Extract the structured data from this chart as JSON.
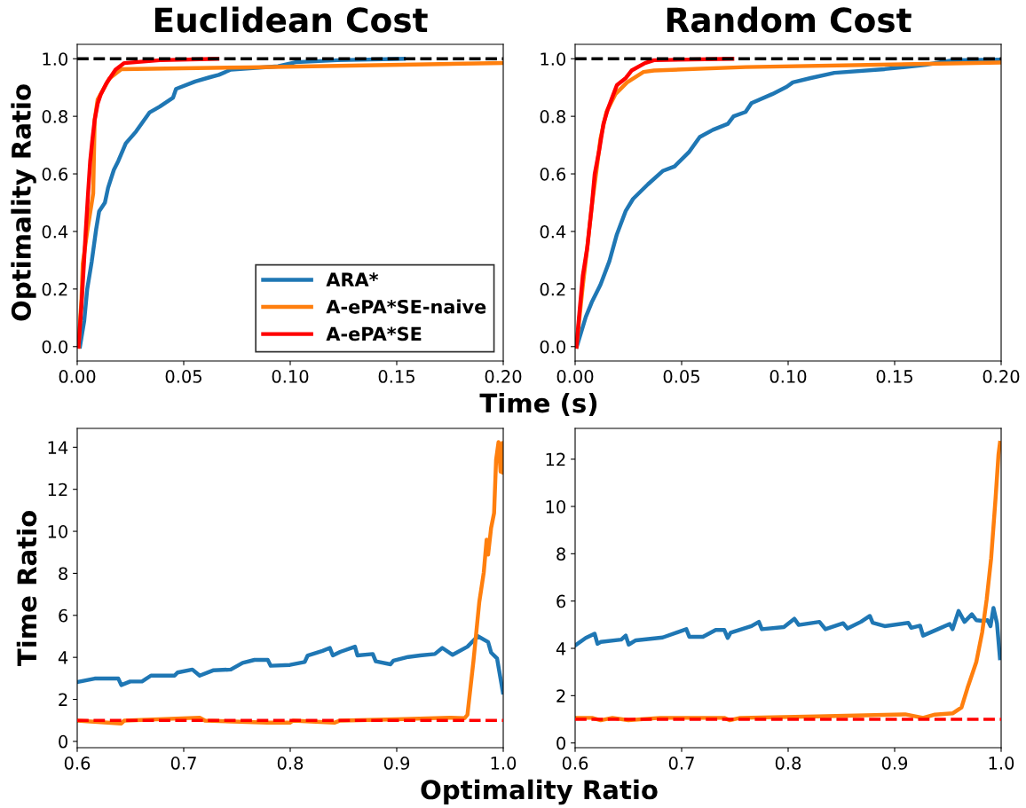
{
  "chart_data": [
    {
      "type": "line",
      "title": "Euclidean Cost",
      "ylabel": "Optimality Ratio",
      "xlabel": "Time (s)",
      "xlim": [
        0,
        0.2
      ],
      "xticks": [
        {
          "value": 0,
          "label": "0.00"
        },
        {
          "value": 0.05,
          "label": "0.05"
        },
        {
          "value": 0.1,
          "label": "0.10"
        },
        {
          "value": 0.15,
          "label": "0.15"
        },
        {
          "value": 0.2,
          "label": "0.20"
        }
      ],
      "ylim": [
        -0.05,
        1.05
      ],
      "yticks": [
        {
          "value": 0,
          "label": "0.0"
        },
        {
          "value": 0.2,
          "label": "0.2"
        },
        {
          "value": 0.4,
          "label": "0.4"
        },
        {
          "value": 0.6,
          "label": "0.6"
        },
        {
          "value": 0.8,
          "label": "0.8"
        },
        {
          "value": 1,
          "label": "1.0"
        }
      ],
      "legend": "bottom right",
      "grid": false,
      "ref_lines": [
        {
          "axis": "y",
          "value": 1,
          "color": "#000000",
          "line_style": "dashed"
        }
      ],
      "series": [
        {
          "name": "ARA*",
          "color": "#1f77b4",
          "x": [
            0.0013,
            0.0033,
            0.0047,
            0.0068,
            0.0089,
            0.0103,
            0.013,
            0.0145,
            0.0172,
            0.0193,
            0.0228,
            0.0276,
            0.0339,
            0.0388,
            0.045,
            0.0464,
            0.0554,
            0.0624,
            0.0665,
            0.0721,
            0.0943,
            0.1026,
            0.1221,
            0.1533
          ],
          "values": [
            0.0,
            0.09,
            0.2,
            0.295,
            0.408,
            0.47,
            0.5,
            0.552,
            0.614,
            0.645,
            0.706,
            0.747,
            0.813,
            0.834,
            0.865,
            0.895,
            0.921,
            0.936,
            0.944,
            0.962,
            0.974,
            0.988,
            0.995,
            1.0
          ]
        },
        {
          "name": "A-ePA*SE-naive",
          "color": "#ff7f0e",
          "x": [
            0.0006,
            0.002,
            0.0026,
            0.0047,
            0.0075,
            0.0082,
            0.0096,
            0.0151,
            0.0207,
            0.0804,
            0.2
          ],
          "values": [
            0.0,
            0.164,
            0.287,
            0.4,
            0.532,
            0.788,
            0.859,
            0.931,
            0.964,
            0.97,
            0.985
          ]
        },
        {
          "name": "A-ePA*SE",
          "color": "#ff0000",
          "x": [
            0.0006,
            0.002,
            0.0029,
            0.004,
            0.0051,
            0.0061,
            0.0071,
            0.0082,
            0.0096,
            0.011,
            0.0138,
            0.018,
            0.0221,
            0.0388,
            0.0658
          ],
          "values": [
            0.0,
            0.144,
            0.257,
            0.4,
            0.532,
            0.645,
            0.717,
            0.788,
            0.844,
            0.875,
            0.916,
            0.962,
            0.985,
            0.995,
            1.0
          ]
        }
      ]
    },
    {
      "type": "line",
      "title": "Random Cost",
      "xlim": [
        0,
        0.2
      ],
      "xticks": [
        {
          "value": 0,
          "label": "0.00"
        },
        {
          "value": 0.05,
          "label": "0.05"
        },
        {
          "value": 0.1,
          "label": "0.10"
        },
        {
          "value": 0.15,
          "label": "0.15"
        },
        {
          "value": 0.2,
          "label": "0.20"
        }
      ],
      "ylim": [
        -0.05,
        1.05
      ],
      "yticks": [
        {
          "value": 0,
          "label": "0.0"
        },
        {
          "value": 0.2,
          "label": "0.2"
        },
        {
          "value": 0.4,
          "label": "0.4"
        },
        {
          "value": 0.6,
          "label": "0.6"
        },
        {
          "value": 0.8,
          "label": "0.8"
        },
        {
          "value": 1,
          "label": "1.0"
        }
      ],
      "grid": false,
      "ref_lines": [
        {
          "axis": "y",
          "value": 1,
          "color": "#000000",
          "line_style": "dashed"
        }
      ],
      "series": [
        {
          "color": "#1f77b4",
          "x": [
            0.0008,
            0.005,
            0.0078,
            0.0119,
            0.0161,
            0.0196,
            0.0238,
            0.0272,
            0.0342,
            0.0411,
            0.0467,
            0.0536,
            0.0585,
            0.0647,
            0.0717,
            0.0744,
            0.08,
            0.0828,
            0.0925,
            0.0994,
            0.1022,
            0.1106,
            0.1217,
            0.1453,
            0.1647,
            0.1772,
            0.2
          ],
          "values": [
            0.0,
            0.103,
            0.154,
            0.215,
            0.297,
            0.39,
            0.472,
            0.513,
            0.564,
            0.61,
            0.626,
            0.677,
            0.728,
            0.753,
            0.774,
            0.8,
            0.815,
            0.846,
            0.877,
            0.903,
            0.918,
            0.933,
            0.951,
            0.964,
            0.979,
            0.995,
            0.997
          ]
        },
        {
          "color": "#ff7f0e",
          "x": [
            0.0006,
            0.0036,
            0.0057,
            0.0078,
            0.01,
            0.0119,
            0.0147,
            0.0189,
            0.0244,
            0.0321,
            0.037,
            0.08,
            0.2
          ],
          "values": [
            0.0,
            0.21,
            0.344,
            0.487,
            0.61,
            0.723,
            0.815,
            0.877,
            0.918,
            0.954,
            0.959,
            0.971,
            0.987
          ]
        },
        {
          "color": "#ff0000",
          "x": [
            0.0006,
            0.0022,
            0.0036,
            0.0057,
            0.0078,
            0.0092,
            0.0113,
            0.0133,
            0.0154,
            0.0175,
            0.0196,
            0.0238,
            0.0265,
            0.0328,
            0.037,
            0.0738
          ],
          "values": [
            0.0,
            0.133,
            0.246,
            0.344,
            0.487,
            0.6,
            0.682,
            0.774,
            0.826,
            0.867,
            0.908,
            0.933,
            0.959,
            0.985,
            0.995,
            1.0
          ]
        }
      ]
    },
    {
      "type": "line",
      "ylabel": "Time Ratio",
      "xlabel": "Optimality Ratio",
      "xlim": [
        0.6,
        1.0
      ],
      "xticks": [
        0.6,
        0.7,
        0.8,
        0.9,
        {
          "value": 1.0,
          "label": "1.0"
        }
      ],
      "ylim": [
        -0.3,
        14.9
      ],
      "yticks": [
        0,
        2,
        4,
        6,
        8,
        10,
        12,
        14
      ],
      "grid": false,
      "ref_lines": [
        {
          "axis": "y",
          "value": 1,
          "color": "#ff0000",
          "line_style": "dashed"
        }
      ],
      "series": [
        {
          "color": "#1f77b4",
          "x": [
            0.6,
            0.6164,
            0.6386,
            0.6414,
            0.6497,
            0.6608,
            0.6692,
            0.6914,
            0.6942,
            0.7081,
            0.715,
            0.7275,
            0.7442,
            0.7553,
            0.7664,
            0.7789,
            0.7817,
            0.7997,
            0.8136,
            0.8164,
            0.8303,
            0.8372,
            0.84,
            0.8469,
            0.8608,
            0.8631,
            0.8775,
            0.8803,
            0.8942,
            0.8969,
            0.9108,
            0.9219,
            0.9358,
            0.9428,
            0.9525,
            0.9664,
            0.9761,
            0.9858,
            0.9886,
            0.9942,
            0.9997
          ],
          "values": [
            2.82,
            2.99,
            2.99,
            2.68,
            2.85,
            2.85,
            3.13,
            3.13,
            3.28,
            3.42,
            3.13,
            3.38,
            3.42,
            3.74,
            3.88,
            3.88,
            3.6,
            3.64,
            3.78,
            4.09,
            4.31,
            4.45,
            4.09,
            4.26,
            4.51,
            4.09,
            4.16,
            3.81,
            3.67,
            3.84,
            4.02,
            4.09,
            4.16,
            4.45,
            4.12,
            4.51,
            5.01,
            4.73,
            4.23,
            3.95,
            2.33
          ]
        },
        {
          "color": "#ff7f0e",
          "x": [
            0.6,
            0.6414,
            0.6442,
            0.715,
            0.72,
            0.7789,
            0.7997,
            0.8025,
            0.8414,
            0.8469,
            0.9,
            0.95,
            0.9636,
            0.9664,
            0.972,
            0.9775,
            0.9817,
            0.9844,
            0.9858,
            0.9886,
            0.9914,
            0.9933,
            0.9956,
            0.9975,
            0.9992,
            1.0
          ],
          "values": [
            0.99,
            0.85,
            0.99,
            1.13,
            0.99,
            0.89,
            0.89,
            0.99,
            0.89,
            0.99,
            1.05,
            1.13,
            1.1,
            1.27,
            3.81,
            6.63,
            8.04,
            9.6,
            8.89,
            10.16,
            10.87,
            13.41,
            14.25,
            12.84,
            14.2,
            12.8
          ]
        }
      ]
    },
    {
      "type": "line",
      "xlim": [
        0.6,
        1.0
      ],
      "xticks": [
        0.6,
        0.7,
        0.8,
        0.9,
        {
          "value": 1.0,
          "label": "1.0"
        }
      ],
      "ylim": [
        -0.2,
        13.3
      ],
      "yticks": [
        0,
        2,
        4,
        6,
        8,
        10,
        12
      ],
      "grid": false,
      "ref_lines": [
        {
          "axis": "y",
          "value": 1,
          "color": "#ff0000",
          "line_style": "dashed"
        }
      ],
      "series": [
        {
          "color": "#1f77b4",
          "x": [
            0.6,
            0.61,
            0.6183,
            0.621,
            0.624,
            0.6433,
            0.6475,
            0.6503,
            0.657,
            0.6822,
            0.7044,
            0.7072,
            0.72,
            0.732,
            0.74,
            0.7433,
            0.746,
            0.7656,
            0.7725,
            0.7753,
            0.796,
            0.8058,
            0.81,
            0.8294,
            0.835,
            0.8517,
            0.8558,
            0.8683,
            0.8767,
            0.8794,
            0.8906,
            0.9128,
            0.9156,
            0.9239,
            0.9267,
            0.9406,
            0.9517,
            0.9544,
            0.96,
            0.9656,
            0.9725,
            0.9767,
            0.9822,
            0.9872,
            0.99,
            0.9928,
            0.9961,
            0.9989
          ],
          "values": [
            4.12,
            4.44,
            4.62,
            4.19,
            4.27,
            4.37,
            4.54,
            4.16,
            4.34,
            4.46,
            4.81,
            4.49,
            4.49,
            4.78,
            4.78,
            4.44,
            4.66,
            4.94,
            5.12,
            4.81,
            4.9,
            5.25,
            4.99,
            5.12,
            4.81,
            5.06,
            4.84,
            5.12,
            5.37,
            5.08,
            4.94,
            5.08,
            4.87,
            4.96,
            4.54,
            4.81,
            5.03,
            4.81,
            5.58,
            5.12,
            5.44,
            5.19,
            5.16,
            5.19,
            4.94,
            5.71,
            5.06,
            3.58
          ]
        },
        {
          "color": "#ff7f0e",
          "x": [
            0.6,
            0.616,
            0.6239,
            0.635,
            0.65,
            0.68,
            0.74,
            0.745,
            0.755,
            0.8267,
            0.91,
            0.9267,
            0.9378,
            0.9544,
            0.9628,
            0.9683,
            0.9767,
            0.9822,
            0.9864,
            0.9906,
            0.9947,
            0.9975,
            0.9989
          ],
          "values": [
            1.06,
            1.06,
            0.96,
            1.06,
            0.96,
            1.06,
            1.06,
            0.96,
            1.06,
            1.12,
            1.21,
            1.06,
            1.2,
            1.25,
            1.5,
            2.31,
            3.43,
            4.68,
            6.06,
            7.81,
            10.31,
            12.19,
            12.69
          ]
        }
      ]
    }
  ]
}
